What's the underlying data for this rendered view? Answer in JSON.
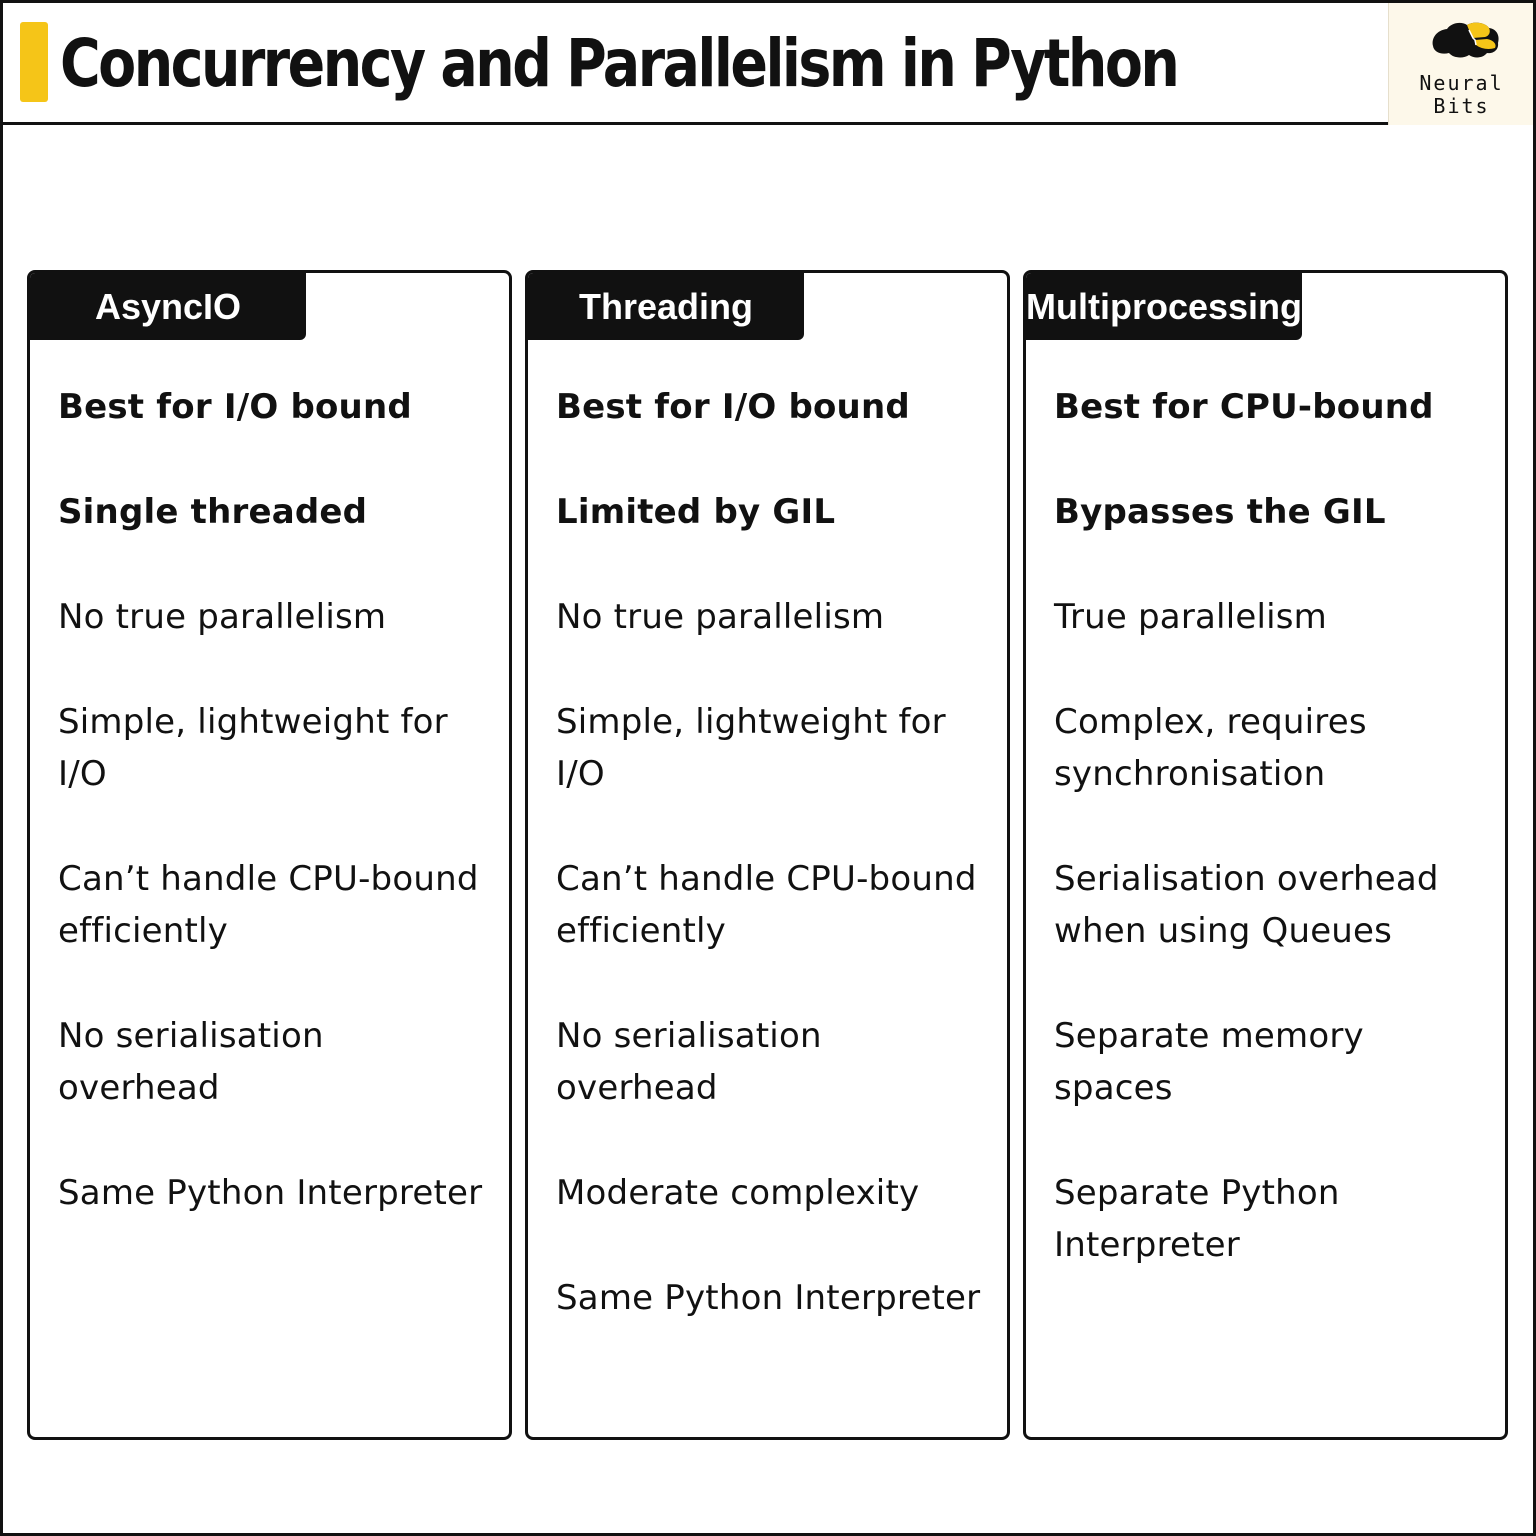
{
  "header": {
    "title": "Concurrency and Parallelism in Python",
    "brand_line1": "Neural",
    "brand_line2": "Bits",
    "accent_color": "#f5c518"
  },
  "columns": [
    {
      "tab": "AsyncIO",
      "items": [
        {
          "text": "Best for I/O bound",
          "emphasis": true
        },
        {
          "text": "Single threaded",
          "emphasis": true
        },
        {
          "text": "No true parallelism",
          "emphasis": false
        },
        {
          "text": "Simple, lightweight for I/O",
          "emphasis": false
        },
        {
          "text": "Can’t handle CPU-bound efficiently",
          "emphasis": false
        },
        {
          "text": "No serialisation overhead",
          "emphasis": false
        },
        {
          "text": "Same Python Interpreter",
          "emphasis": false
        }
      ]
    },
    {
      "tab": "Threading",
      "items": [
        {
          "text": "Best for I/O bound",
          "emphasis": true
        },
        {
          "text": "Limited by GIL",
          "emphasis": true
        },
        {
          "text": "No true parallelism",
          "emphasis": false
        },
        {
          "text": "Simple, lightweight for I/O",
          "emphasis": false
        },
        {
          "text": "Can’t handle CPU-bound efficiently",
          "emphasis": false
        },
        {
          "text": "No serialisation overhead",
          "emphasis": false
        },
        {
          "text": "Moderate complexity",
          "emphasis": false
        },
        {
          "text": "Same Python Interpreter",
          "emphasis": false
        }
      ]
    },
    {
      "tab": "Multiprocessing",
      "items": [
        {
          "text": "Best for CPU-bound",
          "emphasis": true
        },
        {
          "text": "Bypasses the GIL",
          "emphasis": true
        },
        {
          "text": "True parallelism",
          "emphasis": false
        },
        {
          "text": "Complex, requires synchronisation",
          "emphasis": false
        },
        {
          "text": "Serialisation overhead when using Queues",
          "emphasis": false
        },
        {
          "text": "Separate memory spaces",
          "emphasis": false
        },
        {
          "text": "Separate Python Interpreter",
          "emphasis": false
        }
      ]
    }
  ]
}
